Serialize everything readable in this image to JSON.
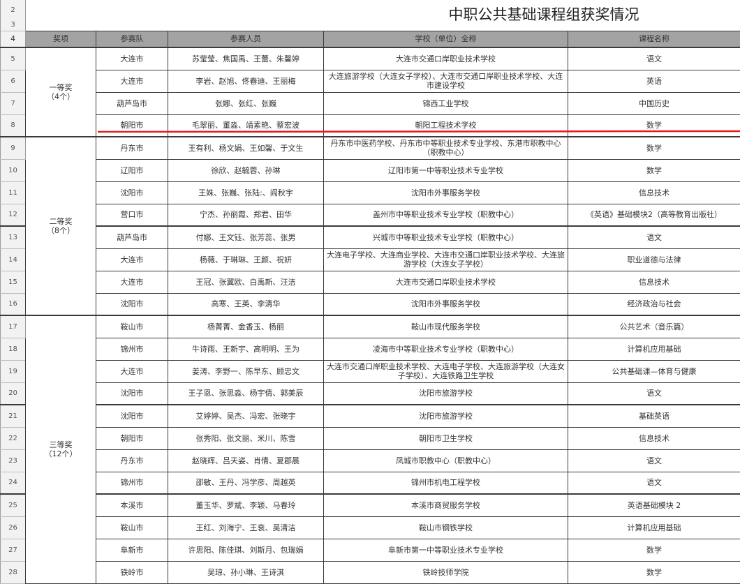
{
  "title": "中职公共基础课程组获奖情况",
  "row_numbers_top": [
    "2",
    "3",
    "4"
  ],
  "headers": [
    "奖项",
    "参赛队",
    "参赛人员",
    "学校（单位）全称",
    "课程名称"
  ],
  "annotation_color": "#e8191c",
  "groups": [
    {
      "award": "一等奖",
      "count": "（4个）",
      "rows": [
        {
          "num": "5",
          "team": "大连市",
          "members": "苏莹莹、焦国禹、王蕾、朱馨婷",
          "school": "大连市交通口岸职业技术学校",
          "course": "语文"
        },
        {
          "num": "6",
          "team": "大连市",
          "members": "李岩、赵旭、佟春迪、王丽梅",
          "school": "大连旅游学校（大连女子学校）、大连市交通口岸职业技术学校、大连市建设学校",
          "course": "英语"
        },
        {
          "num": "7",
          "team": "葫芦岛市",
          "members": "张娜、张红、张巍",
          "school": "锦西工业学校",
          "course": "中国历史"
        },
        {
          "num": "8",
          "team": "朝阳市",
          "members": "毛翠丽、董淼、靖素艳、蔡宏波",
          "school": "朝阳工程技术学校",
          "course": "数学"
        }
      ]
    },
    {
      "award": "二等奖",
      "count": "（8个）",
      "rows": [
        {
          "num": "9",
          "team": "丹东市",
          "members": "王有利、杨文娟、王如馨、于文生",
          "school": "丹东市中医药学校、丹东市中等职业技术专业学校、东港市职教中心（职教中心）",
          "course": "数学"
        },
        {
          "num": "10",
          "team": "辽阳市",
          "members": "徐欣、赵毓蓉、孙琳",
          "school": "辽阳市第一中等职业技术专业学校",
          "course": "数学"
        },
        {
          "num": "11",
          "team": "沈阳市",
          "members": "王姝、张巍、张陆:、阎秋宇",
          "school": "沈阳市外事服务学校",
          "course": "信息技术"
        },
        {
          "num": "12",
          "team": "营口市",
          "members": "宁杰、孙丽霞、郑君、田华",
          "school": "盖州市中等职业技术专业学校（职教中心）",
          "course": "《英语》基础模块2（高等教育出版社）"
        },
        {
          "num": "13",
          "team": "葫芦岛市",
          "members": "付娜、王文钰、张芳蕊、张男",
          "school": "兴城市中等职业技术专业学校（职教中心）",
          "course": "语文"
        },
        {
          "num": "14",
          "team": "大连市",
          "members": "杨薇、于琳琳、王颜、祝妍",
          "school": "大连电子学校、大连商业学校、大连市交通口岸职业技术学校、大连旅游学校（大连女子学校）",
          "course": "职业道德与法律"
        },
        {
          "num": "15",
          "team": "大连市",
          "members": "王冠、张翼欧、白禹新、汪洁",
          "school": "大连市交通口岸职业技术学校",
          "course": "信息技术"
        },
        {
          "num": "16",
          "team": "沈阳市",
          "members": "高寒、王英、李清华",
          "school": "沈阳市外事服务学校",
          "course": "经济政治与社会"
        }
      ]
    },
    {
      "award": "三等奖",
      "count": "（12个）",
      "rows": [
        {
          "num": "17",
          "team": "鞍山市",
          "members": "杨菁菁、金香玉、杨丽",
          "school": "鞍山市现代服务学校",
          "course": "公共艺术（音乐篇）"
        },
        {
          "num": "18",
          "team": "锦州市",
          "members": "牛诗雨、王新宇、高明明、王为",
          "school": "凌海市中等职业技术专业学校（职教中心）",
          "course": "计算机应用基础"
        },
        {
          "num": "19",
          "team": "大连市",
          "members": "姜涛、李野一、陈早东、顾忠文",
          "school": "大连市交通口岸职业技术学校、大连电子学校、大连旅游学校（大连女子学校）、大连铁路卫生学校",
          "course": "公共基础课—体育与健康"
        },
        {
          "num": "20",
          "team": "沈阳市",
          "members": "王子恩、张思淼、杨宇倩、郭美辰",
          "school": "沈阳市旅游学校",
          "course": "语文"
        },
        {
          "num": "21",
          "team": "沈阳市",
          "members": "艾婷婷、吴杰、冯宏、张晓宇",
          "school": "沈阳市旅游学校",
          "course": "基础英语"
        },
        {
          "num": "22",
          "team": "朝阳市",
          "members": "张秀阳、张文丽、米川、陈雪",
          "school": "朝阳市卫生学校",
          "course": "信息技术"
        },
        {
          "num": "23",
          "team": "丹东市",
          "members": "赵晓辉、吕天姿、肖倩、夏郡晨",
          "school": "凤城市职教中心（职教中心）",
          "course": "语文"
        },
        {
          "num": "24",
          "team": "锦州市",
          "members": "邵敏、王丹、冯学彦、周越英",
          "school": "锦州市机电工程学校",
          "course": "语文"
        },
        {
          "num": "25",
          "team": "本溪市",
          "members": "董玉华、罗斌、李颖、马春玲",
          "school": "本溪市商贸服务学校",
          "course": "英语基础模块 2"
        },
        {
          "num": "26",
          "team": "鞍山市",
          "members": "王红、刘海宁、王衰、吴清洁",
          "school": "鞍山市钢铁学校",
          "course": "计算机应用基础"
        },
        {
          "num": "27",
          "team": "阜新市",
          "members": "许思阳、陈佳琪、刘斯月、包瑞娟",
          "school": "阜新市第一中等职业技术专业学校",
          "course": "数学"
        },
        {
          "num": "28",
          "team": "铁岭市",
          "members": "吴琼、孙小琳、王诗淇",
          "school": "铁岭技师学院",
          "course": "数学"
        }
      ]
    }
  ]
}
